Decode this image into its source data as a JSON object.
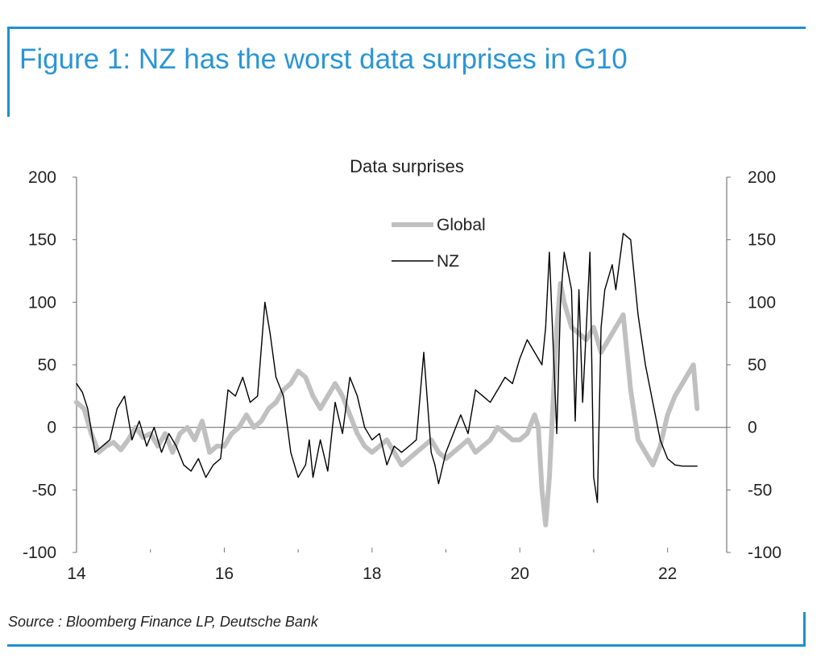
{
  "figure": {
    "title": "Figure 1: NZ has the worst data surprises in G10",
    "source": "Source : Bloomberg Finance LP, Deutsche Bank"
  },
  "colors": {
    "accent": "#1f8fcf",
    "global": "#c0c0c0",
    "nz": "#000000"
  },
  "chart_data": {
    "type": "line",
    "title": "Data surprises",
    "xlabel": "",
    "ylabel": "",
    "xlim": [
      14,
      22.8
    ],
    "ylim": [
      -100,
      200
    ],
    "x_ticks": [
      "14",
      "16",
      "18",
      "20",
      "22"
    ],
    "y_ticks": [
      "200",
      "150",
      "100",
      "50",
      "0",
      "-50",
      "-100"
    ],
    "legend_position": "top-center",
    "grid": false,
    "series": [
      {
        "name": "Global",
        "x": [
          14.0,
          14.1,
          14.2,
          14.3,
          14.4,
          14.5,
          14.6,
          14.7,
          14.8,
          14.9,
          15.0,
          15.1,
          15.2,
          15.3,
          15.4,
          15.5,
          15.6,
          15.7,
          15.8,
          15.9,
          16.0,
          16.1,
          16.2,
          16.3,
          16.4,
          16.5,
          16.6,
          16.7,
          16.8,
          16.9,
          17.0,
          17.1,
          17.2,
          17.3,
          17.4,
          17.5,
          17.6,
          17.7,
          17.8,
          17.9,
          18.0,
          18.1,
          18.2,
          18.3,
          18.4,
          18.5,
          18.6,
          18.7,
          18.8,
          18.9,
          19.0,
          19.1,
          19.2,
          19.3,
          19.4,
          19.5,
          19.6,
          19.7,
          19.8,
          19.9,
          20.0,
          20.1,
          20.2,
          20.25,
          20.3,
          20.35,
          20.4,
          20.5,
          20.55,
          20.6,
          20.65,
          20.7,
          20.8,
          20.9,
          21.0,
          21.1,
          21.2,
          21.3,
          21.4,
          21.5,
          21.6,
          21.7,
          21.8,
          21.9,
          22.0,
          22.1,
          22.2,
          22.3,
          22.35,
          22.4
        ],
        "values": [
          20,
          15,
          -5,
          -20,
          -15,
          -12,
          -18,
          -10,
          0,
          -8,
          -5,
          -15,
          -5,
          -20,
          -5,
          0,
          -10,
          5,
          -20,
          -15,
          -15,
          -5,
          0,
          10,
          0,
          5,
          15,
          20,
          30,
          35,
          45,
          40,
          25,
          15,
          25,
          35,
          25,
          10,
          -5,
          -15,
          -20,
          -15,
          -10,
          -20,
          -30,
          -25,
          -20,
          -15,
          -10,
          -20,
          -25,
          -20,
          -15,
          -10,
          -20,
          -15,
          -10,
          0,
          -5,
          -10,
          -10,
          -5,
          10,
          0,
          -50,
          -78,
          -40,
          80,
          115,
          100,
          90,
          80,
          75,
          70,
          80,
          60,
          70,
          80,
          90,
          30,
          -10,
          -20,
          -30,
          -15,
          10,
          25,
          35,
          45,
          50,
          15
        ],
        "color": "#c0c0c0"
      },
      {
        "name": "NZ",
        "x": [
          14.0,
          14.08,
          14.15,
          14.25,
          14.35,
          14.45,
          14.55,
          14.65,
          14.75,
          14.85,
          14.95,
          15.05,
          15.15,
          15.25,
          15.35,
          15.45,
          15.55,
          15.65,
          15.75,
          15.85,
          15.95,
          16.05,
          16.15,
          16.25,
          16.35,
          16.45,
          16.55,
          16.62,
          16.7,
          16.8,
          16.9,
          17.0,
          17.1,
          17.15,
          17.2,
          17.3,
          17.4,
          17.5,
          17.6,
          17.7,
          17.8,
          17.9,
          18.0,
          18.1,
          18.2,
          18.3,
          18.4,
          18.5,
          18.6,
          18.7,
          18.8,
          18.85,
          18.9,
          19.0,
          19.1,
          19.2,
          19.3,
          19.4,
          19.5,
          19.6,
          19.7,
          19.8,
          19.9,
          20.0,
          20.1,
          20.2,
          20.3,
          20.35,
          20.4,
          20.5,
          20.55,
          20.6,
          20.7,
          20.75,
          20.8,
          20.85,
          20.9,
          20.95,
          21.0,
          21.05,
          21.1,
          21.15,
          21.2,
          21.25,
          21.3,
          21.4,
          21.5,
          21.6,
          21.7,
          21.8,
          21.9,
          22.0,
          22.1,
          22.2,
          22.25,
          22.3,
          22.35,
          22.4
        ],
        "values": [
          35,
          28,
          15,
          -20,
          -15,
          -10,
          15,
          25,
          -10,
          5,
          -15,
          0,
          -20,
          -5,
          -15,
          -30,
          -35,
          -25,
          -40,
          -30,
          -25,
          30,
          25,
          40,
          20,
          25,
          100,
          75,
          40,
          25,
          -20,
          -40,
          -30,
          -10,
          -40,
          -10,
          -35,
          20,
          -5,
          40,
          25,
          0,
          -10,
          -5,
          -30,
          -15,
          -20,
          -15,
          -10,
          60,
          -20,
          -30,
          -45,
          -20,
          -5,
          10,
          -5,
          30,
          25,
          20,
          30,
          40,
          35,
          55,
          70,
          60,
          50,
          80,
          140,
          -5,
          100,
          140,
          110,
          5,
          110,
          20,
          80,
          140,
          -40,
          -60,
          80,
          110,
          120,
          130,
          110,
          155,
          150,
          90,
          50,
          20,
          -10,
          -25,
          -30,
          -31,
          -31,
          -31,
          -31,
          -31
        ],
        "color": "#000000"
      }
    ]
  }
}
